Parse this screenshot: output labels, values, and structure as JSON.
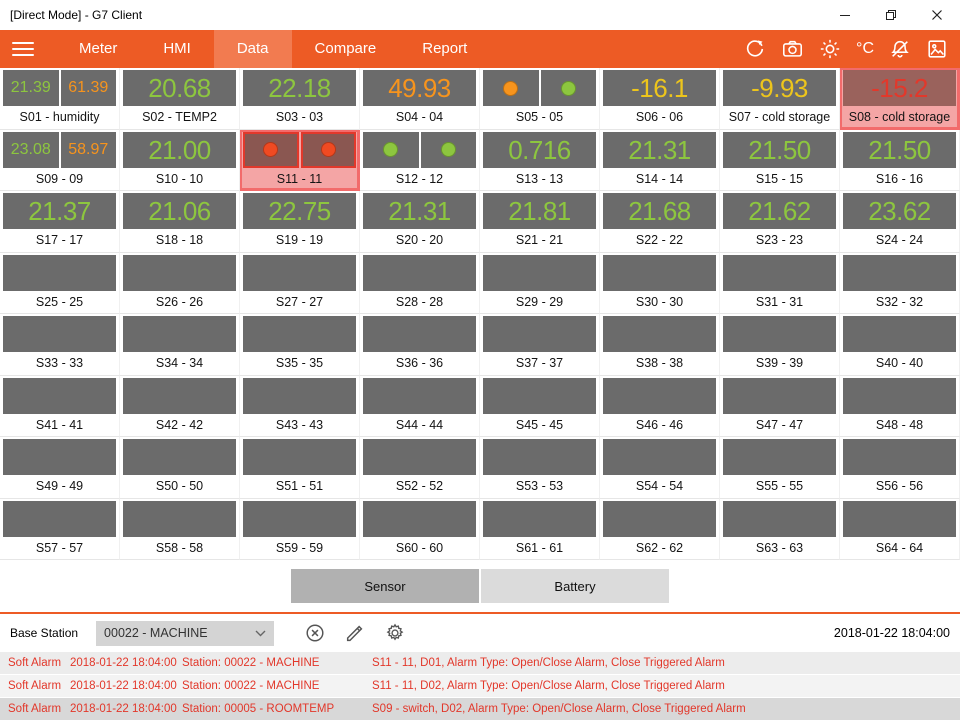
{
  "window": {
    "title": "[Direct Mode] - G7 Client"
  },
  "nav": {
    "tabs": [
      {
        "label": "Meter",
        "active": false
      },
      {
        "label": "HMI",
        "active": false
      },
      {
        "label": "Data",
        "active": true
      },
      {
        "label": "Compare",
        "active": false
      },
      {
        "label": "Report",
        "active": false
      }
    ],
    "unit_label": "°C",
    "icons": [
      "menu-icon",
      "sync-icon",
      "camera-icon",
      "brightness-icon",
      "celsius-unit",
      "alarm-bell-icon",
      "image-icon"
    ]
  },
  "grid": {
    "tiles": [
      {
        "label": "S01 - humidity",
        "type": "dual",
        "values": [
          "21.39",
          "61.39"
        ],
        "value_colors": [
          "green",
          "orange"
        ]
      },
      {
        "label": "S02 - TEMP2",
        "type": "single",
        "value": "20.68",
        "color": "green"
      },
      {
        "label": "S03 - 03",
        "type": "single",
        "value": "22.18",
        "color": "green"
      },
      {
        "label": "S04 - 04",
        "type": "single",
        "value": "49.93",
        "color": "orange"
      },
      {
        "label": "S05 - 05",
        "type": "circles",
        "circles": [
          "orange",
          "green"
        ]
      },
      {
        "label": "S06 - 06",
        "type": "single",
        "value": "-16.1",
        "color": "yellow"
      },
      {
        "label": "S07 - cold storage",
        "type": "single",
        "value": "-9.93",
        "color": "yellow"
      },
      {
        "label": "S08 - cold storage",
        "type": "single",
        "value": "-15.2",
        "color": "red",
        "alarm": true
      },
      {
        "label": "S09 - 09",
        "type": "dual",
        "values": [
          "23.08",
          "58.97"
        ],
        "value_colors": [
          "green",
          "orange"
        ]
      },
      {
        "label": "S10 - 10",
        "type": "single",
        "value": "21.00",
        "color": "green"
      },
      {
        "label": "S11 - 11",
        "type": "circles",
        "circles": [
          "alarm_dot",
          "alarm_dot"
        ],
        "alarm": true
      },
      {
        "label": "S12 - 12",
        "type": "circles",
        "circles": [
          "green",
          "green"
        ]
      },
      {
        "label": "S13 - 13",
        "type": "single",
        "value": "0.716",
        "color": "green"
      },
      {
        "label": "S14 - 14",
        "type": "single",
        "value": "21.31",
        "color": "green"
      },
      {
        "label": "S15 - 15",
        "type": "single",
        "value": "21.50",
        "color": "green"
      },
      {
        "label": "S16 - 16",
        "type": "single",
        "value": "21.50",
        "color": "green"
      },
      {
        "label": "S17 - 17",
        "type": "single",
        "value": "21.37",
        "color": "green"
      },
      {
        "label": "S18 - 18",
        "type": "single",
        "value": "21.06",
        "color": "green"
      },
      {
        "label": "S19 - 19",
        "type": "single",
        "value": "22.75",
        "color": "green"
      },
      {
        "label": "S20 - 20",
        "type": "single",
        "value": "21.31",
        "color": "green"
      },
      {
        "label": "S21 - 21",
        "type": "single",
        "value": "21.81",
        "color": "green"
      },
      {
        "label": "S22 - 22",
        "type": "single",
        "value": "21.68",
        "color": "green"
      },
      {
        "label": "S23 - 23",
        "type": "single",
        "value": "21.62",
        "color": "green"
      },
      {
        "label": "S24 - 24",
        "type": "single",
        "value": "23.62",
        "color": "green"
      },
      {
        "label": "S25 - 25",
        "type": "empty"
      },
      {
        "label": "S26 - 26",
        "type": "empty"
      },
      {
        "label": "S27 - 27",
        "type": "empty"
      },
      {
        "label": "S28 - 28",
        "type": "empty"
      },
      {
        "label": "S29 - 29",
        "type": "empty"
      },
      {
        "label": "S30 - 30",
        "type": "empty"
      },
      {
        "label": "S31 - 31",
        "type": "empty"
      },
      {
        "label": "S32 - 32",
        "type": "empty"
      },
      {
        "label": "S33 - 33",
        "type": "empty"
      },
      {
        "label": "S34 - 34",
        "type": "empty"
      },
      {
        "label": "S35 - 35",
        "type": "empty"
      },
      {
        "label": "S36 - 36",
        "type": "empty"
      },
      {
        "label": "S37 - 37",
        "type": "empty"
      },
      {
        "label": "S38 - 38",
        "type": "empty"
      },
      {
        "label": "S39 - 39",
        "type": "empty"
      },
      {
        "label": "S40 - 40",
        "type": "empty"
      },
      {
        "label": "S41 - 41",
        "type": "empty"
      },
      {
        "label": "S42 - 42",
        "type": "empty"
      },
      {
        "label": "S43 - 43",
        "type": "empty"
      },
      {
        "label": "S44 - 44",
        "type": "empty"
      },
      {
        "label": "S45 - 45",
        "type": "empty"
      },
      {
        "label": "S46 - 46",
        "type": "empty"
      },
      {
        "label": "S47 - 47",
        "type": "empty"
      },
      {
        "label": "S48 - 48",
        "type": "empty"
      },
      {
        "label": "S49 - 49",
        "type": "empty"
      },
      {
        "label": "S50 - 50",
        "type": "empty"
      },
      {
        "label": "S51 - 51",
        "type": "empty"
      },
      {
        "label": "S52 - 52",
        "type": "empty"
      },
      {
        "label": "S53 - 53",
        "type": "empty"
      },
      {
        "label": "S54 - 54",
        "type": "empty"
      },
      {
        "label": "S55 - 55",
        "type": "empty"
      },
      {
        "label": "S56 - 56",
        "type": "empty"
      },
      {
        "label": "S57 - 57",
        "type": "empty"
      },
      {
        "label": "S58 - 58",
        "type": "empty"
      },
      {
        "label": "S59 - 59",
        "type": "empty"
      },
      {
        "label": "S60 - 60",
        "type": "empty"
      },
      {
        "label": "S61 - 61",
        "type": "empty"
      },
      {
        "label": "S62 - 62",
        "type": "empty"
      },
      {
        "label": "S63 - 63",
        "type": "empty"
      },
      {
        "label": "S64 - 64",
        "type": "empty"
      }
    ]
  },
  "view_toggle": {
    "sensor_label": "Sensor",
    "battery_label": "Battery",
    "selected": "Sensor"
  },
  "base_station": {
    "label": "Base Station",
    "selected": "00022 - MACHINE",
    "datetime": "2018-01-22 18:04:00",
    "icons": [
      "cancel-icon",
      "edit-icon",
      "settings-icon",
      "chevron-down-icon"
    ]
  },
  "alarms": [
    {
      "type": "Soft Alarm",
      "time": "2018-01-22 18:04:00",
      "station": "Station: 00022 - MACHINE",
      "detail": "S11 - 11, D01, Alarm Type: Open/Close Alarm, Close Triggered Alarm"
    },
    {
      "type": "Soft Alarm",
      "time": "2018-01-22 18:04:00",
      "station": "Station: 00022 - MACHINE",
      "detail": "S11 - 11, D02, Alarm Type: Open/Close Alarm, Close Triggered Alarm"
    },
    {
      "type": "Soft Alarm",
      "time": "2018-01-22 18:04:00",
      "station": "Station: 00005 - ROOMTEMP",
      "detail": "S09 - switch, D02, Alarm Type: Open/Close Alarm, Close Triggered Alarm"
    }
  ],
  "colors": {
    "green": "#8DC63F",
    "orange": "#F7941D",
    "yellow": "#EDC51C",
    "red": "#E2382B",
    "alarm_dot": "#F04A22",
    "accent": "#ED5B25",
    "tile_gray": "#6B6B6B"
  }
}
